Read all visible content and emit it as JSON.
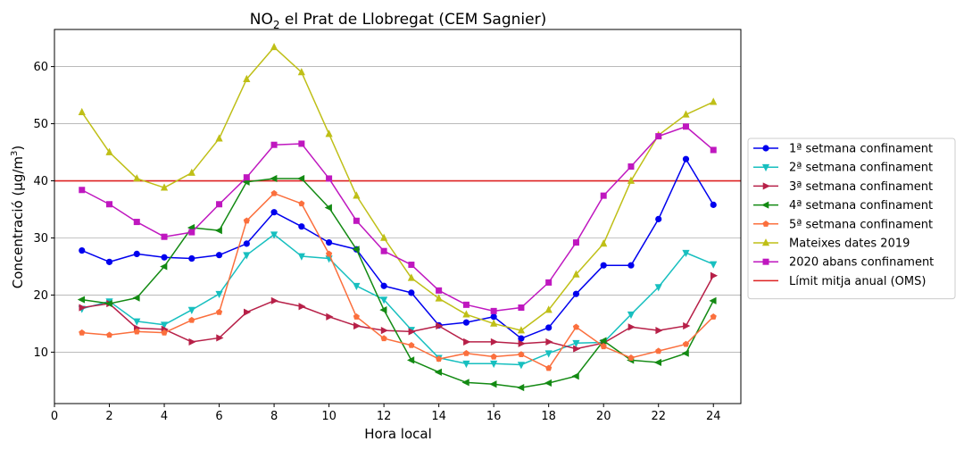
{
  "chart_data": {
    "type": "line",
    "title": "NO2 el Prat de Llobregat (CEM Sagnier)",
    "title_main": "NO",
    "title_sub": "2",
    "title_rest": " el Prat de Llobregat (CEM Sagnier)",
    "xlabel": "Hora local",
    "ylabel_main": "Concentració (µg/m",
    "ylabel_sup": "3",
    "ylabel_end": ")",
    "xlim": [
      0,
      25
    ],
    "ylim": [
      1,
      66.5
    ],
    "xticks": [
      0,
      2,
      4,
      6,
      8,
      10,
      12,
      14,
      16,
      18,
      20,
      22,
      24
    ],
    "yticks": [
      10,
      20,
      30,
      40,
      50,
      60
    ],
    "grid": "horizontal",
    "legend_placement": "right-outside",
    "x": [
      1,
      2,
      3,
      4,
      5,
      6,
      7,
      8,
      9,
      10,
      11,
      12,
      13,
      14,
      15,
      16,
      17,
      18,
      19,
      20,
      21,
      22,
      23,
      24
    ],
    "series": [
      {
        "name": "1ª setmana confinament",
        "color": "#0000ee",
        "marker": "circle",
        "values": [
          27.8,
          25.8,
          27.2,
          26.6,
          26.4,
          27.0,
          29.0,
          34.5,
          32.0,
          29.2,
          28.0,
          21.6,
          20.4,
          14.7,
          15.2,
          16.2,
          12.4,
          14.3,
          20.2,
          25.2,
          25.2,
          33.3,
          43.8,
          35.8
        ]
      },
      {
        "name": "2ª setmana confinament",
        "color": "#17bfbf",
        "marker": "triangle-down",
        "values": [
          17.6,
          18.9,
          15.4,
          14.8,
          17.4,
          20.2,
          27.0,
          30.6,
          26.8,
          26.4,
          21.6,
          19.2,
          13.9,
          9.0,
          8.0,
          8.0,
          7.8,
          9.8,
          11.6,
          11.7,
          16.6,
          21.4,
          27.4,
          25.4
        ]
      },
      {
        "name": "3ª setmana confinament",
        "color": "#b72048",
        "marker": "triangle-right",
        "values": [
          17.8,
          18.5,
          14.2,
          14.0,
          11.8,
          12.5,
          17.0,
          19.0,
          18.0,
          16.2,
          14.6,
          13.8,
          13.6,
          14.6,
          11.8,
          11.8,
          11.5,
          11.8,
          10.6,
          11.6,
          14.4,
          13.8,
          14.6,
          23.4
        ]
      },
      {
        "name": "4ª setmana confinament",
        "color": "#138a13",
        "marker": "triangle-left",
        "values": [
          19.2,
          18.5,
          19.5,
          25.0,
          31.8,
          31.3,
          39.8,
          40.4,
          40.4,
          35.3,
          28.0,
          17.4,
          8.6,
          6.5,
          4.7,
          4.4,
          3.8,
          4.6,
          5.8,
          12.0,
          8.6,
          8.2,
          9.8,
          19.0
        ]
      },
      {
        "name": "5ª setmana confinament",
        "color": "#fb6f3d",
        "marker": "pentagon",
        "values": [
          13.4,
          13.0,
          13.6,
          13.4,
          15.6,
          17.0,
          33.0,
          37.8,
          36.0,
          27.2,
          16.2,
          12.4,
          11.2,
          8.8,
          9.8,
          9.2,
          9.6,
          7.2,
          14.4,
          11.0,
          9.0,
          10.2,
          11.4,
          16.2
        ]
      },
      {
        "name": "Mateixes dates 2019",
        "color": "#bfbf17",
        "marker": "triangle-up",
        "values": [
          52.0,
          45.0,
          40.4,
          38.8,
          41.4,
          47.4,
          57.8,
          63.4,
          59.0,
          48.2,
          37.4,
          30.0,
          23.0,
          19.4,
          16.6,
          15.0,
          13.8,
          17.4,
          23.6,
          29.0,
          40.0,
          48.0,
          51.6,
          53.8
        ]
      },
      {
        "name": "2020 abans confinament",
        "color": "#bf17bf",
        "marker": "square",
        "values": [
          38.4,
          35.9,
          32.8,
          30.2,
          31.0,
          35.9,
          40.6,
          46.3,
          46.5,
          40.4,
          33.0,
          27.7,
          25.3,
          20.8,
          18.3,
          17.2,
          17.8,
          22.2,
          29.2,
          37.4,
          42.5,
          47.8,
          49.5,
          45.4
        ]
      }
    ],
    "reference_line": {
      "name": "Límit mitja anual (OMS)",
      "value": 40,
      "color": "#dd2222"
    }
  }
}
